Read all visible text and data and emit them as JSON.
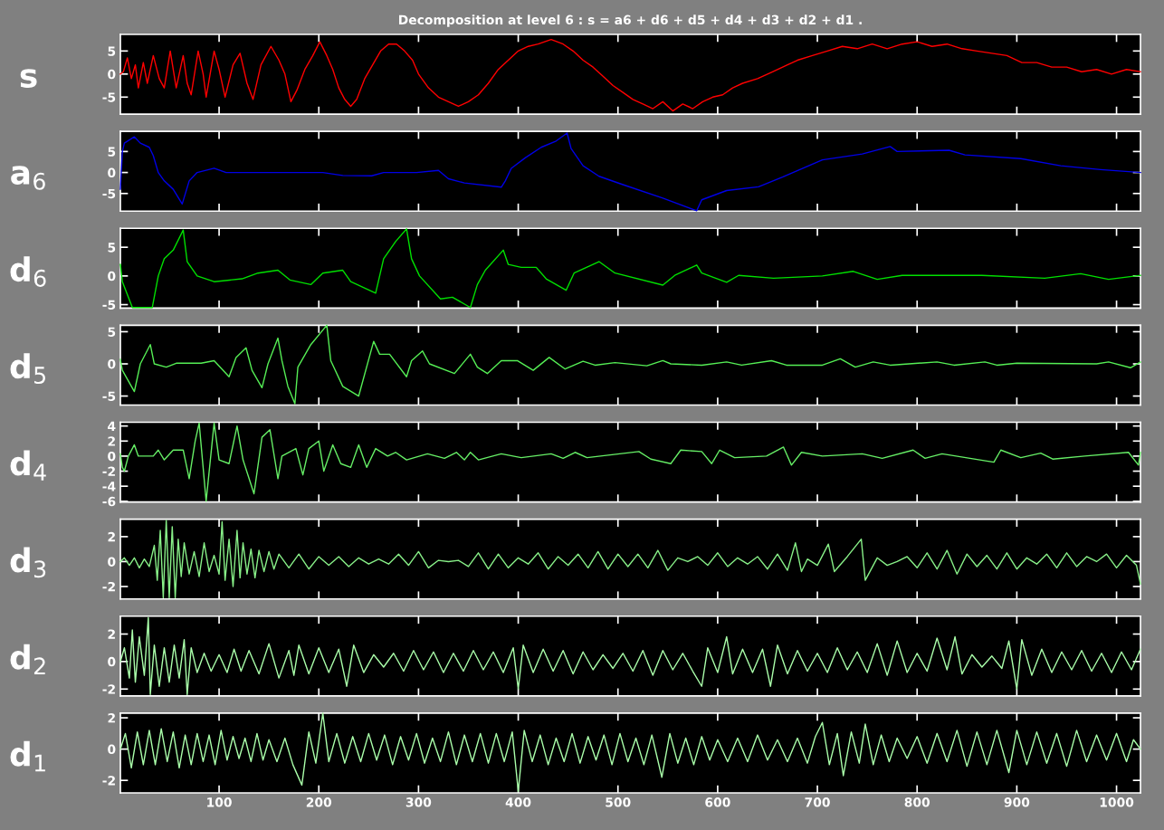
{
  "chart_data": [
    {
      "type": "line",
      "title": "Decomposition at level 6 : s = a6 + d6 + d5 + d4 + d3 + d2 + d1 .",
      "ylabel": "s",
      "xlim": [
        1,
        1024
      ],
      "xticks": [
        100,
        200,
        300,
        400,
        500,
        600,
        700,
        800,
        900,
        1000
      ],
      "ylim": [
        -8.7,
        8.6
      ],
      "yticks": [
        -5,
        0,
        5
      ],
      "tick_labels": "y",
      "series": [
        {
          "color": "#ff0000",
          "x": [
            1,
            4,
            8,
            12,
            16,
            19,
            24,
            28,
            34,
            40,
            45,
            51,
            57,
            64,
            68,
            72,
            79,
            84,
            87,
            95,
            100,
            106,
            114,
            121,
            128,
            134,
            142,
            152,
            160,
            166,
            172,
            178,
            186,
            194,
            201,
            208,
            214,
            220,
            226,
            232,
            238,
            246,
            254,
            262,
            270,
            278,
            286,
            294,
            300,
            310,
            320,
            330,
            340,
            350,
            360,
            370,
            380,
            390,
            400,
            410,
            420,
            433,
            445,
            455,
            465,
            475,
            485,
            495,
            505,
            515,
            525,
            535,
            545,
            555,
            565,
            575,
            585,
            595,
            605,
            615,
            625,
            640,
            655,
            670,
            680,
            695,
            710,
            725,
            740,
            755,
            770,
            785,
            800,
            815,
            830,
            845,
            860,
            875,
            890,
            905,
            920,
            935,
            950,
            965,
            980,
            995,
            1010,
            1024
          ],
          "values": [
            0,
            0.5,
            3.5,
            -1,
            2,
            -3,
            2.5,
            -2,
            4,
            -1,
            -3,
            5,
            -3,
            4,
            -2,
            -4.5,
            5,
            0,
            -5,
            5,
            1,
            -5,
            2,
            4.5,
            -2,
            -5.5,
            2,
            6,
            3,
            0,
            -6,
            -3.5,
            1,
            4,
            7,
            4,
            1,
            -3,
            -5.5,
            -7,
            -5.5,
            -1,
            2,
            5,
            6.5,
            6.5,
            5,
            3,
            0,
            -3,
            -5,
            -6,
            -7,
            -6,
            -4.5,
            -2,
            1,
            3,
            5,
            6,
            6.5,
            7.5,
            6.5,
            5,
            3,
            1.5,
            -0.5,
            -2.5,
            -4,
            -5.5,
            -6.5,
            -7.5,
            -6,
            -8,
            -6.5,
            -7.5,
            -6,
            -5,
            -4.5,
            -3,
            -2,
            -1,
            0.5,
            2,
            3,
            4,
            5,
            6,
            5.5,
            6.5,
            5.5,
            6.5,
            7,
            6,
            6.5,
            5.5,
            5,
            4.5,
            4,
            2.5,
            2.5,
            1.5,
            1.5,
            0.5,
            1,
            0,
            1,
            0.5
          ]
        }
      ]
    },
    {
      "type": "line",
      "ylabel": "a$_{6}$",
      "xlim": [
        1,
        1024
      ],
      "xticks": [
        100,
        200,
        300,
        400,
        500,
        600,
        700,
        800,
        900,
        1000
      ],
      "ylim": [
        -9.2,
        9.8
      ],
      "yticks": [
        -5,
        0,
        5
      ],
      "tick_labels": "y",
      "series": [
        {
          "color": "#0000e6",
          "x": [
            1,
            3,
            5,
            15,
            21,
            30,
            34,
            39,
            45,
            54,
            63,
            70,
            78,
            95,
            107,
            204,
            224,
            253,
            265,
            298,
            320,
            330,
            346,
            383,
            387,
            393,
            407,
            423,
            438,
            449,
            453,
            465,
            481,
            505,
            545,
            579,
            584,
            609,
            641,
            665,
            705,
            745,
            773,
            780,
            832,
            848,
            904,
            944,
            984,
            1024
          ],
          "values": [
            -4,
            5,
            7,
            8.5,
            7,
            6,
            4,
            0,
            -2,
            -4,
            -7.5,
            -2,
            0,
            1,
            0,
            0,
            -0.7,
            -0.8,
            0,
            0,
            0.5,
            -1.5,
            -2.5,
            -3.5,
            -2,
            1,
            3.5,
            6,
            7.5,
            9.4,
            5.7,
            1.6,
            -0.9,
            -2.9,
            -6.1,
            -9.1,
            -6.5,
            -4.3,
            -3.4,
            -1.1,
            3,
            4.4,
            6.2,
            5,
            5.3,
            4.2,
            3.3,
            1.6,
            0.7,
            0
          ]
        }
      ]
    },
    {
      "type": "line",
      "ylabel": "d$_{6}$",
      "xlim": [
        1,
        1024
      ],
      "xticks": [
        100,
        200,
        300,
        400,
        500,
        600,
        700,
        800,
        900,
        1000
      ],
      "ylim": [
        -5.6,
        8.3
      ],
      "yticks": [
        -5,
        0,
        5
      ],
      "tick_labels": "y",
      "series": [
        {
          "color": "#00e000",
          "x": [
            1,
            3,
            13,
            33,
            39,
            45,
            54,
            64,
            68,
            78,
            95,
            123,
            139,
            159,
            171,
            192,
            204,
            224,
            232,
            257,
            265,
            277,
            288,
            293,
            301,
            322,
            334,
            352,
            359,
            367,
            385,
            390,
            403,
            418,
            428,
            448,
            456,
            481,
            497,
            545,
            557,
            579,
            584,
            609,
            621,
            656,
            705,
            736,
            760,
            785,
            865,
            928,
            964,
            992,
            1024
          ],
          "values": [
            2,
            -1,
            -5.5,
            -5.5,
            0,
            3,
            4.5,
            8,
            2.5,
            0,
            -1,
            -0.5,
            0.5,
            1,
            -0.7,
            -1.5,
            0.5,
            1,
            -1,
            -3,
            3,
            6,
            8.2,
            3,
            0,
            -4,
            -3.7,
            -5.5,
            -1.5,
            1,
            4.5,
            2,
            1.5,
            1.5,
            -0.5,
            -2.5,
            0.5,
            2.5,
            0.5,
            -1.6,
            0.1,
            1.9,
            0.5,
            -1.1,
            0.1,
            -0.4,
            0,
            0.8,
            -0.6,
            0.1,
            0.1,
            -0.4,
            0.4,
            -0.6,
            0.1
          ]
        }
      ]
    },
    {
      "type": "line",
      "ylabel": "d$_{5}$",
      "xlim": [
        1,
        1024
      ],
      "xticks": [
        100,
        200,
        300,
        400,
        500,
        600,
        700,
        800,
        900,
        1000
      ],
      "ylim": [
        -6.4,
        6.0
      ],
      "yticks": [
        -5,
        0,
        5
      ],
      "tick_labels": "y",
      "series": [
        {
          "color": "#55ee55",
          "x": [
            1,
            3,
            15,
            21,
            31,
            35,
            47,
            57,
            82,
            95,
            110,
            117,
            127,
            133,
            143,
            149,
            159,
            163,
            169,
            176,
            179,
            192,
            208,
            212,
            224,
            240,
            255,
            261,
            271,
            288,
            293,
            304,
            311,
            336,
            352,
            359,
            369,
            383,
            399,
            415,
            431,
            447,
            465,
            477,
            497,
            529,
            545,
            553,
            584,
            609,
            624,
            654,
            669,
            705,
            723,
            738,
            756,
            773,
            820,
            837,
            868,
            880,
            900,
            980,
            992,
            1014,
            1024
          ],
          "values": [
            0.7,
            -1,
            -4.3,
            0,
            3,
            0,
            -0.5,
            0.1,
            0.1,
            0.5,
            -2,
            1,
            2.5,
            -1,
            -3.7,
            0,
            4,
            0.5,
            -3.5,
            -6.2,
            -0.5,
            3,
            6,
            0.5,
            -3.5,
            -5,
            3.5,
            1.5,
            1.5,
            -2,
            0.5,
            2,
            0,
            -1.5,
            1.5,
            -0.5,
            -1.5,
            0.5,
            0.5,
            -1,
            1,
            -0.8,
            0.4,
            -0.2,
            0.2,
            -0.3,
            0.5,
            0,
            -0.2,
            0.3,
            -0.2,
            0.5,
            -0.2,
            -0.2,
            0.8,
            -0.5,
            0.3,
            -0.2,
            0.3,
            -0.2,
            0.3,
            -0.2,
            0.1,
            0,
            0.3,
            -0.6,
            0.3
          ]
        }
      ]
    },
    {
      "type": "line",
      "ylabel": "d$_{4}$",
      "xlim": [
        1,
        1024
      ],
      "xticks": [
        100,
        200,
        300,
        400,
        500,
        600,
        700,
        800,
        900,
        1000
      ],
      "ylim": [
        -6.1,
        4.5
      ],
      "yticks": [
        -6,
        -4,
        -2,
        0,
        2,
        4
      ],
      "tick_labels": "y",
      "series": [
        {
          "color": "#66ee66",
          "x": [
            1,
            3,
            5,
            9,
            15,
            19,
            34,
            39,
            45,
            54,
            64,
            70,
            76,
            80,
            87,
            95,
            100,
            110,
            118,
            124,
            135,
            143,
            151,
            159,
            163,
            177,
            184,
            190,
            200,
            205,
            214,
            222,
            232,
            240,
            248,
            257,
            269,
            277,
            288,
            309,
            326,
            338,
            346,
            352,
            360,
            383,
            403,
            433,
            445,
            457,
            469,
            521,
            533,
            553,
            563,
            584,
            594,
            602,
            617,
            649,
            666,
            674,
            684,
            705,
            745,
            765,
            796,
            808,
            825,
            877,
            884,
            904,
            924,
            936,
            968,
            1012,
            1022,
            1024
          ],
          "values": [
            0.3,
            -1.5,
            -2,
            0,
            1.5,
            0,
            0,
            0.8,
            -0.5,
            0.8,
            0.8,
            -3,
            2,
            4.4,
            -6,
            4.4,
            -0.5,
            -1,
            4,
            -0.5,
            -5,
            2.5,
            3.5,
            -3,
            0,
            1,
            -2.5,
            1,
            2,
            -2,
            1.5,
            -1,
            -1.5,
            1.5,
            -1.5,
            1,
            0,
            0.5,
            -0.5,
            0.3,
            -0.3,
            0.5,
            -0.5,
            0.5,
            -0.5,
            0.3,
            -0.2,
            0.3,
            -0.3,
            0.5,
            -0.2,
            0.6,
            -0.4,
            -1,
            0.8,
            0.6,
            -1,
            0.8,
            -0.2,
            0,
            1.2,
            -1.2,
            0.5,
            0,
            0.3,
            -0.3,
            0.8,
            -0.3,
            0.3,
            -0.8,
            0.8,
            -0.2,
            0.4,
            -0.4,
            0,
            0.5,
            -1.2,
            0.5
          ]
        }
      ]
    },
    {
      "type": "line",
      "ylabel": "d$_{3}$",
      "xlim": [
        1,
        1024
      ],
      "xticks": [
        100,
        200,
        300,
        400,
        500,
        600,
        700,
        800,
        900,
        1000
      ],
      "ylim": [
        -3.0,
        3.4
      ],
      "yticks": [
        -2,
        0,
        2
      ],
      "tick_labels": "y",
      "series": [
        {
          "color": "#88f088",
          "x": [
            1,
            5,
            10,
            15,
            20,
            25,
            30,
            35,
            38,
            41,
            44,
            47,
            50,
            53,
            56,
            59,
            62,
            65,
            70,
            75,
            80,
            85,
            90,
            95,
            100,
            103,
            106,
            110,
            114,
            118,
            121,
            124,
            128,
            132,
            136,
            140,
            145,
            150,
            155,
            160,
            170,
            180,
            190,
            200,
            210,
            220,
            230,
            240,
            250,
            260,
            270,
            280,
            290,
            300,
            310,
            320,
            330,
            340,
            350,
            360,
            370,
            380,
            390,
            400,
            410,
            420,
            430,
            440,
            450,
            460,
            470,
            480,
            490,
            500,
            510,
            520,
            530,
            540,
            550,
            560,
            570,
            580,
            590,
            600,
            610,
            620,
            630,
            640,
            650,
            660,
            670,
            678,
            684,
            690,
            700,
            711,
            717,
            730,
            744,
            748,
            760,
            770,
            780,
            790,
            800,
            810,
            820,
            830,
            840,
            850,
            860,
            870,
            880,
            890,
            900,
            910,
            920,
            930,
            940,
            950,
            960,
            970,
            980,
            990,
            1000,
            1010,
            1020,
            1024
          ],
          "values": [
            0,
            0.3,
            -0.3,
            0.3,
            -0.5,
            0.2,
            -0.4,
            1.3,
            -1.5,
            2.5,
            -2.9,
            3.3,
            -2.9,
            2.8,
            -2.9,
            1.8,
            -1.2,
            1.5,
            -1,
            0.8,
            -1.2,
            1.5,
            -0.8,
            0.5,
            -1,
            3.2,
            -1.5,
            1.8,
            -2,
            2.5,
            -1.3,
            1.5,
            -1,
            1,
            -1.3,
            0.9,
            -0.8,
            0.8,
            -0.6,
            0.6,
            -0.5,
            0.6,
            -0.6,
            0.4,
            -0.3,
            0.4,
            -0.4,
            0.3,
            -0.2,
            0.2,
            -0.2,
            0.6,
            -0.3,
            0.8,
            -0.5,
            0.1,
            0,
            0.1,
            -0.4,
            0.7,
            -0.6,
            0.6,
            -0.5,
            0.3,
            -0.2,
            0.7,
            -0.6,
            0.4,
            -0.3,
            0.6,
            -0.5,
            0.8,
            -0.6,
            0.6,
            -0.4,
            0.6,
            -0.5,
            0.9,
            -0.7,
            0.3,
            0,
            0.4,
            -0.3,
            0.7,
            -0.4,
            0.3,
            -0.2,
            0.4,
            -0.6,
            0.6,
            -0.7,
            1.5,
            -0.8,
            0.2,
            -0.3,
            1.4,
            -0.8,
            0.4,
            1.8,
            -1.5,
            0.3,
            -0.3,
            0,
            0.4,
            -0.5,
            0.7,
            -0.6,
            0.9,
            -1,
            0.6,
            -0.4,
            0.5,
            -0.6,
            0.7,
            -0.6,
            0.3,
            -0.2,
            0.6,
            -0.5,
            0.7,
            -0.4,
            0.4,
            0,
            0.6,
            -0.5,
            0.5,
            -0.3,
            -1.8
          ]
        }
      ]
    },
    {
      "type": "line",
      "ylabel": "d$_{2}$",
      "xlim": [
        1,
        1024
      ],
      "xticks": [
        100,
        200,
        300,
        400,
        500,
        600,
        700,
        800,
        900,
        1000
      ],
      "ylim": [
        -2.5,
        3.3
      ],
      "yticks": [
        -2,
        0,
        2
      ],
      "tick_labels": "y",
      "series": [
        {
          "color": "#aaffaa",
          "x": [
            1,
            5,
            10,
            13,
            16,
            20,
            25,
            29,
            31,
            35,
            40,
            45,
            50,
            55,
            60,
            65,
            68,
            72,
            78,
            85,
            92,
            100,
            108,
            115,
            122,
            130,
            140,
            150,
            160,
            170,
            175,
            180,
            190,
            200,
            210,
            220,
            228,
            235,
            245,
            255,
            265,
            275,
            285,
            295,
            305,
            315,
            325,
            335,
            345,
            355,
            365,
            375,
            385,
            395,
            400,
            405,
            415,
            425,
            435,
            445,
            455,
            465,
            475,
            485,
            495,
            505,
            515,
            525,
            535,
            545,
            555,
            565,
            575,
            584,
            590,
            600,
            609,
            615,
            625,
            635,
            645,
            653,
            660,
            670,
            680,
            690,
            700,
            710,
            720,
            730,
            740,
            750,
            760,
            770,
            780,
            790,
            800,
            810,
            820,
            830,
            838,
            845,
            855,
            865,
            875,
            885,
            892,
            900,
            905,
            915,
            925,
            935,
            945,
            955,
            965,
            975,
            985,
            995,
            1005,
            1015,
            1024
          ],
          "values": [
            0,
            1,
            -1.2,
            2.3,
            -1.5,
            1.8,
            -1,
            3.2,
            -2.4,
            1.2,
            -1.8,
            1,
            -1.5,
            1.2,
            -1.2,
            1.6,
            -2.4,
            1,
            -0.8,
            0.6,
            -0.7,
            0.5,
            -0.8,
            0.9,
            -0.7,
            0.8,
            -0.9,
            1.3,
            -1.2,
            0.8,
            -1,
            1.2,
            -0.9,
            1,
            -0.8,
            0.9,
            -1.8,
            1.2,
            -0.8,
            0.5,
            -0.4,
            0.6,
            -0.7,
            0.8,
            -0.6,
            0.7,
            -0.8,
            0.6,
            -0.7,
            0.8,
            -0.6,
            0.7,
            -0.8,
            1,
            -2,
            1.2,
            -0.8,
            0.9,
            -0.7,
            0.8,
            -0.9,
            0.7,
            -0.6,
            0.5,
            -0.5,
            0.6,
            -0.7,
            0.8,
            -1,
            0.8,
            -0.6,
            0.6,
            -0.7,
            -1.8,
            1,
            -0.8,
            1.8,
            -0.9,
            0.9,
            -0.8,
            0.9,
            -1.8,
            1.2,
            -0.9,
            0.8,
            -0.7,
            0.6,
            -0.8,
            1,
            -0.6,
            0.7,
            -0.8,
            1.3,
            -1,
            1.5,
            -0.8,
            0.6,
            -0.7,
            1.7,
            -0.6,
            1.8,
            -0.9,
            0.5,
            -0.4,
            0.4,
            -0.5,
            1.5,
            -2,
            1.6,
            -1,
            0.9,
            -0.8,
            0.7,
            -0.6,
            0.8,
            -0.7,
            0.6,
            -0.8,
            0.7,
            -0.6,
            0.9
          ]
        }
      ]
    },
    {
      "type": "line",
      "ylabel": "d$_{1}$",
      "xlim": [
        1,
        1024
      ],
      "xticks": [
        100,
        200,
        300,
        400,
        500,
        600,
        700,
        800,
        900,
        1000
      ],
      "ylim": [
        -2.8,
        2.3
      ],
      "yticks": [
        -2,
        0,
        2
      ],
      "series": [
        {
          "color": "#aaffaa",
          "x": [
            1,
            6,
            12,
            18,
            24,
            30,
            36,
            42,
            48,
            54,
            60,
            66,
            72,
            78,
            84,
            90,
            96,
            102,
            108,
            114,
            120,
            126,
            132,
            138,
            144,
            150,
            158,
            166,
            174,
            183,
            190,
            197,
            204,
            210,
            218,
            226,
            234,
            242,
            250,
            258,
            266,
            274,
            282,
            290,
            298,
            306,
            314,
            322,
            330,
            338,
            346,
            354,
            362,
            370,
            378,
            386,
            394,
            400,
            406,
            414,
            422,
            430,
            438,
            446,
            454,
            462,
            470,
            478,
            486,
            494,
            502,
            510,
            518,
            526,
            534,
            544,
            552,
            560,
            568,
            576,
            584,
            592,
            600,
            610,
            620,
            630,
            640,
            650,
            660,
            670,
            680,
            690,
            698,
            705,
            712,
            720,
            726,
            734,
            742,
            748,
            756,
            764,
            772,
            780,
            790,
            800,
            810,
            820,
            830,
            840,
            850,
            860,
            870,
            880,
            892,
            900,
            910,
            920,
            930,
            940,
            950,
            960,
            970,
            980,
            990,
            1000,
            1010,
            1017,
            1024
          ],
          "values": [
            0,
            1,
            -1.2,
            1.1,
            -1,
            1.2,
            -1,
            1.3,
            -0.8,
            1.1,
            -1.2,
            0.9,
            -1,
            1,
            -0.8,
            0.9,
            -1,
            1.2,
            -0.7,
            0.8,
            -0.6,
            0.7,
            -0.8,
            1,
            -0.7,
            0.6,
            -0.8,
            0.7,
            -1,
            -2.3,
            1.1,
            -0.9,
            2.3,
            -0.8,
            1,
            -0.9,
            0.8,
            -0.8,
            1,
            -0.7,
            0.9,
            -1,
            0.8,
            -0.7,
            1,
            -0.9,
            0.7,
            -0.8,
            1.1,
            -1,
            0.9,
            -0.8,
            1,
            -0.9,
            1,
            -0.8,
            1.1,
            -2.7,
            1.2,
            -0.8,
            0.9,
            -1,
            0.7,
            -0.8,
            1,
            -0.9,
            0.8,
            -0.7,
            0.9,
            -1,
            1,
            -0.8,
            0.7,
            -1,
            0.9,
            -1.8,
            1,
            -0.9,
            0.7,
            -1,
            0.8,
            -0.7,
            0.6,
            -0.8,
            0.7,
            -0.8,
            0.9,
            -0.7,
            0.6,
            -0.8,
            0.7,
            -0.9,
            0.8,
            1.7,
            -1,
            1,
            -1.7,
            1.1,
            -0.9,
            1.6,
            -1,
            0.9,
            -0.8,
            0.7,
            -0.6,
            0.8,
            -0.9,
            1,
            -0.8,
            1.2,
            -1.1,
            1.1,
            -1,
            1.2,
            -1.5,
            1.2,
            -1,
            1.1,
            -0.9,
            1,
            -1.1,
            1.2,
            -0.8,
            0.9,
            -0.7,
            1,
            -0.8,
            0.6,
            0
          ]
        }
      ]
    }
  ]
}
